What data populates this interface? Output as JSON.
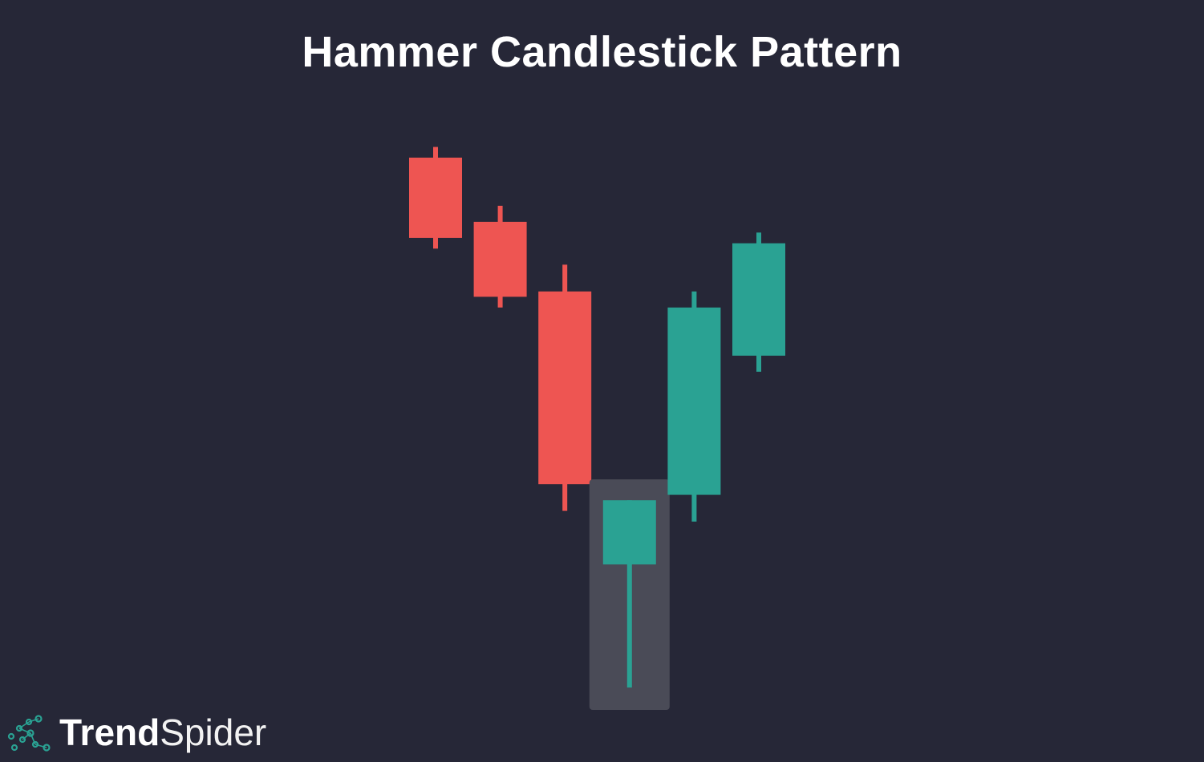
{
  "title": "Hammer Candlestick Pattern",
  "colors": {
    "background": "#262737",
    "bearish": "#ee5552",
    "bullish": "#2aa293",
    "highlight": "#4a4b57"
  },
  "logo": {
    "icon": "spider-dots-icon",
    "word_bold": "Trend",
    "word_light": "Spider"
  },
  "chart_data": {
    "type": "candlestick",
    "title": "Hammer Candlestick Pattern",
    "xlabel": "",
    "ylabel": "",
    "grid": false,
    "ylim": [
      0,
      100
    ],
    "candles": [
      {
        "open": 96,
        "close": 81,
        "high": 98,
        "low": 79,
        "direction": "bearish"
      },
      {
        "open": 84,
        "close": 70,
        "high": 87,
        "low": 68,
        "direction": "bearish"
      },
      {
        "open": 71,
        "close": 35,
        "high": 76,
        "low": 30,
        "direction": "bearish"
      },
      {
        "open": 20,
        "close": 32,
        "high": 32,
        "low": -3,
        "direction": "bullish",
        "highlighted": true
      },
      {
        "open": 33,
        "close": 68,
        "high": 71,
        "low": 28,
        "direction": "bullish"
      },
      {
        "open": 59,
        "close": 80,
        "high": 82,
        "low": 56,
        "direction": "bullish"
      }
    ]
  }
}
